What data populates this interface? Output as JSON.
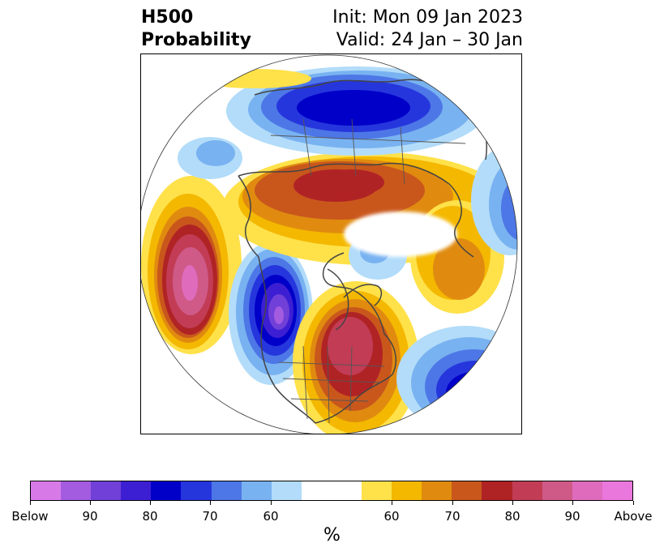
{
  "title": {
    "left_line1": "H500",
    "left_line2": "Probability",
    "right_line1": "Init: Mon 09 Jan 2023",
    "right_line2": "Valid: 24 Jan – 30 Jan"
  },
  "colorbar": {
    "unit": "%",
    "colors": [
      "#d77ae8",
      "#a35be0",
      "#7040d8",
      "#3d1fd3",
      "#0000c8",
      "#2636dd",
      "#4d77e6",
      "#79b2f1",
      "#b2dcf9",
      "#ffffff",
      "#ffe14a",
      "#f4b800",
      "#e08b10",
      "#c9571c",
      "#b02325",
      "#c23c56",
      "#cf5a88",
      "#df6bbd",
      "#ea77dc"
    ],
    "tick_labels": [
      "Below",
      "90",
      "80",
      "70",
      "60",
      "60",
      "70",
      "80",
      "90",
      "Above"
    ]
  }
}
